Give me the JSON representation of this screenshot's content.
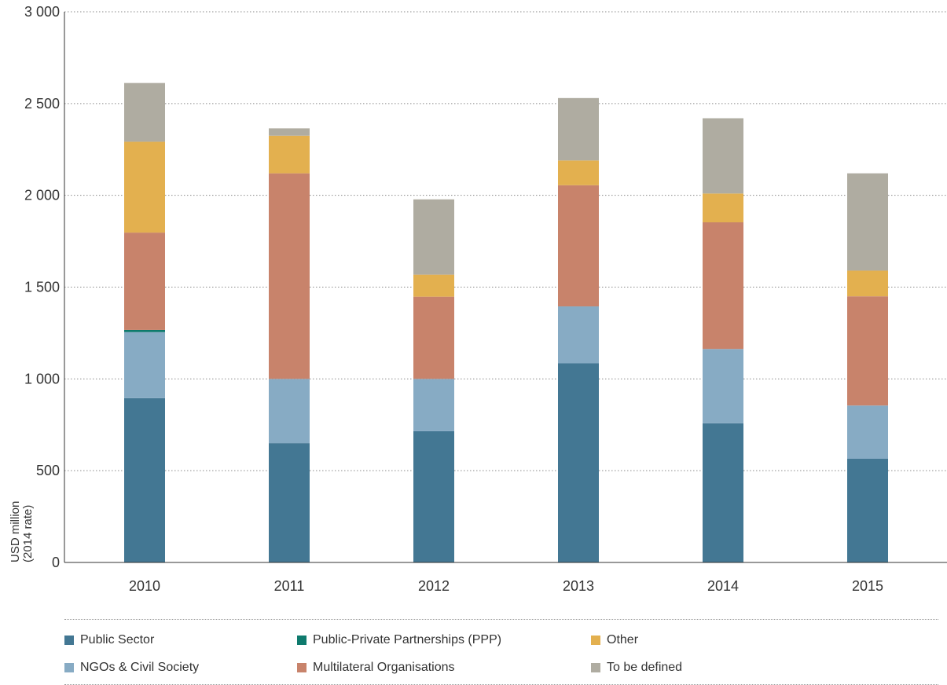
{
  "chart_data": {
    "type": "bar",
    "stacked": true,
    "categories": [
      "2010",
      "2011",
      "2012",
      "2013",
      "2014",
      "2015"
    ],
    "series": [
      {
        "name": "Public Sector",
        "color": "#437793",
        "values": [
          895,
          650,
          715,
          1085,
          758,
          565
        ]
      },
      {
        "name": "NGOs & Civil Society",
        "color": "#87abc4",
        "values": [
          360,
          350,
          285,
          310,
          405,
          290
        ]
      },
      {
        "name": "Public-Private Partnerships (PPP)",
        "color": "#0e7a6d",
        "values": [
          12,
          0,
          0,
          0,
          0,
          0
        ]
      },
      {
        "name": "Multilateral Organisations",
        "color": "#c8836b",
        "values": [
          530,
          1120,
          448,
          660,
          690,
          595
        ]
      },
      {
        "name": "Other",
        "color": "#e3b04f",
        "values": [
          495,
          205,
          120,
          135,
          157,
          140
        ]
      },
      {
        "name": "To be defined",
        "color": "#afaca1",
        "values": [
          320,
          40,
          410,
          340,
          410,
          530
        ]
      }
    ],
    "ylabel": "USD million (2014 rate)",
    "ylim": [
      0,
      3000
    ],
    "yticks": [
      0,
      500,
      1000,
      1500,
      2000,
      2500,
      3000
    ],
    "ytick_labels": [
      "0",
      "500",
      "1 000",
      "1 500",
      "2 000",
      "2 500",
      "3 000"
    ],
    "grid": true,
    "legend_placement": "bottom"
  },
  "legend": {
    "items": [
      {
        "label": "Public Sector",
        "color": "#437793"
      },
      {
        "label": "Public-Private Partnerships (PPP)",
        "color": "#0e7a6d"
      },
      {
        "label": "Other",
        "color": "#e3b04f"
      },
      {
        "label": "NGOs & Civil Society",
        "color": "#87abc4"
      },
      {
        "label": "Multilateral Organisations",
        "color": "#c8836b"
      },
      {
        "label": "To be defined",
        "color": "#afaca1"
      }
    ]
  }
}
